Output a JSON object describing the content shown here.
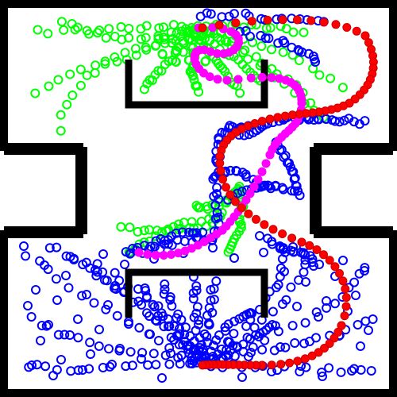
{
  "colors": {
    "background": "#ffffff",
    "wall": "#000000",
    "tree_green": "#00ff00",
    "tree_blue": "#0000ff",
    "path_red": "#ff0000",
    "path_magenta": "#ff00ff"
  },
  "legend": [],
  "title": ""
}
